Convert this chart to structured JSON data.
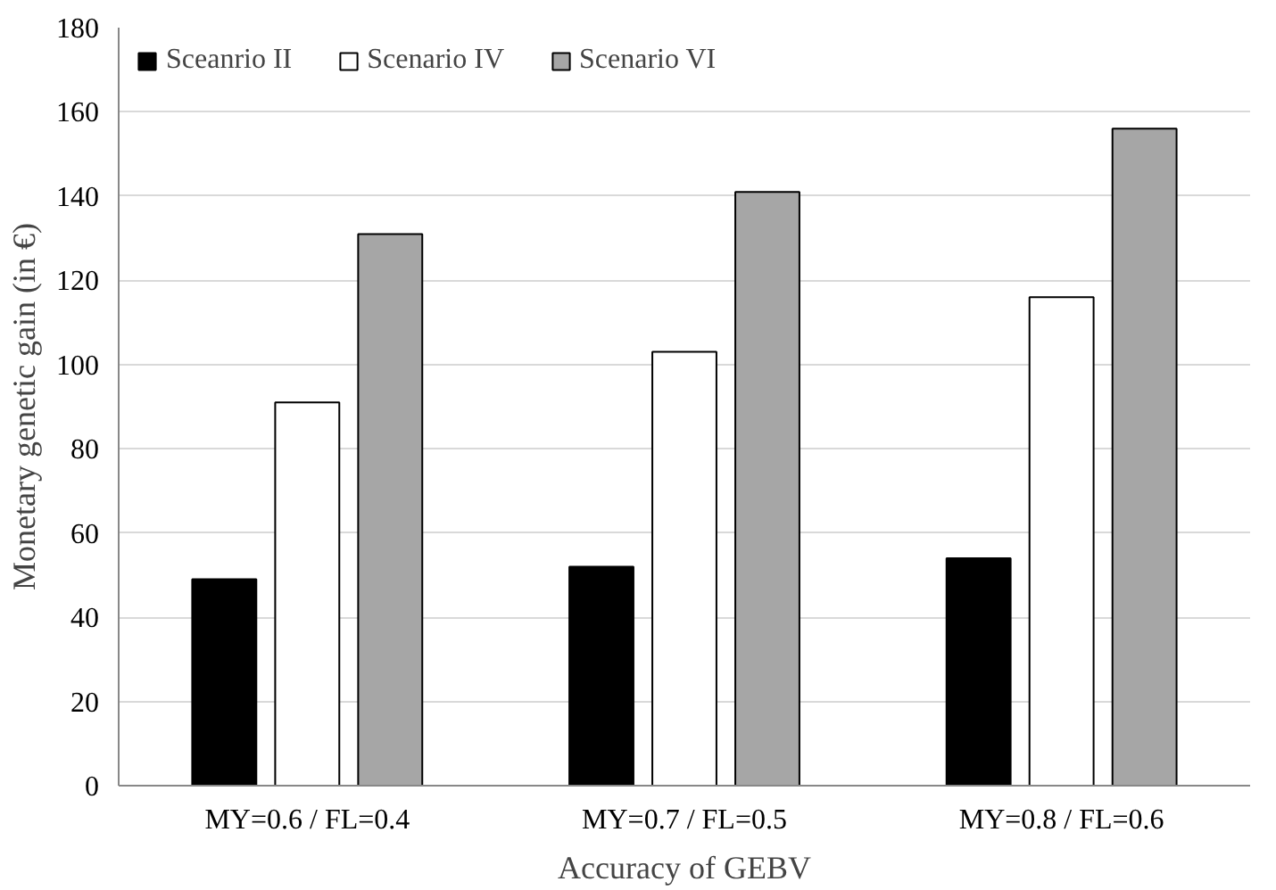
{
  "chart_data": {
    "type": "bar",
    "xlabel": "Accuracy of GEBV",
    "ylabel": "Monetary genetic gain (in €)",
    "categories": [
      "MY=0.6 / FL=0.4",
      "MY=0.7 / FL=0.5",
      "MY=0.8 / FL=0.6"
    ],
    "series": [
      {
        "name": "Sceanrio II",
        "color": "#000000",
        "values": [
          49,
          52,
          54
        ]
      },
      {
        "name": "Scenario IV",
        "color": "#ffffff",
        "values": [
          91,
          103,
          116
        ]
      },
      {
        "name": "Scenario VI",
        "color": "#a6a6a6",
        "values": [
          131,
          141,
          156
        ]
      }
    ],
    "ylim": [
      0,
      180
    ],
    "yticks": [
      0,
      20,
      40,
      60,
      80,
      100,
      120,
      140,
      160,
      180
    ],
    "grid": "y",
    "legend": "top left"
  }
}
